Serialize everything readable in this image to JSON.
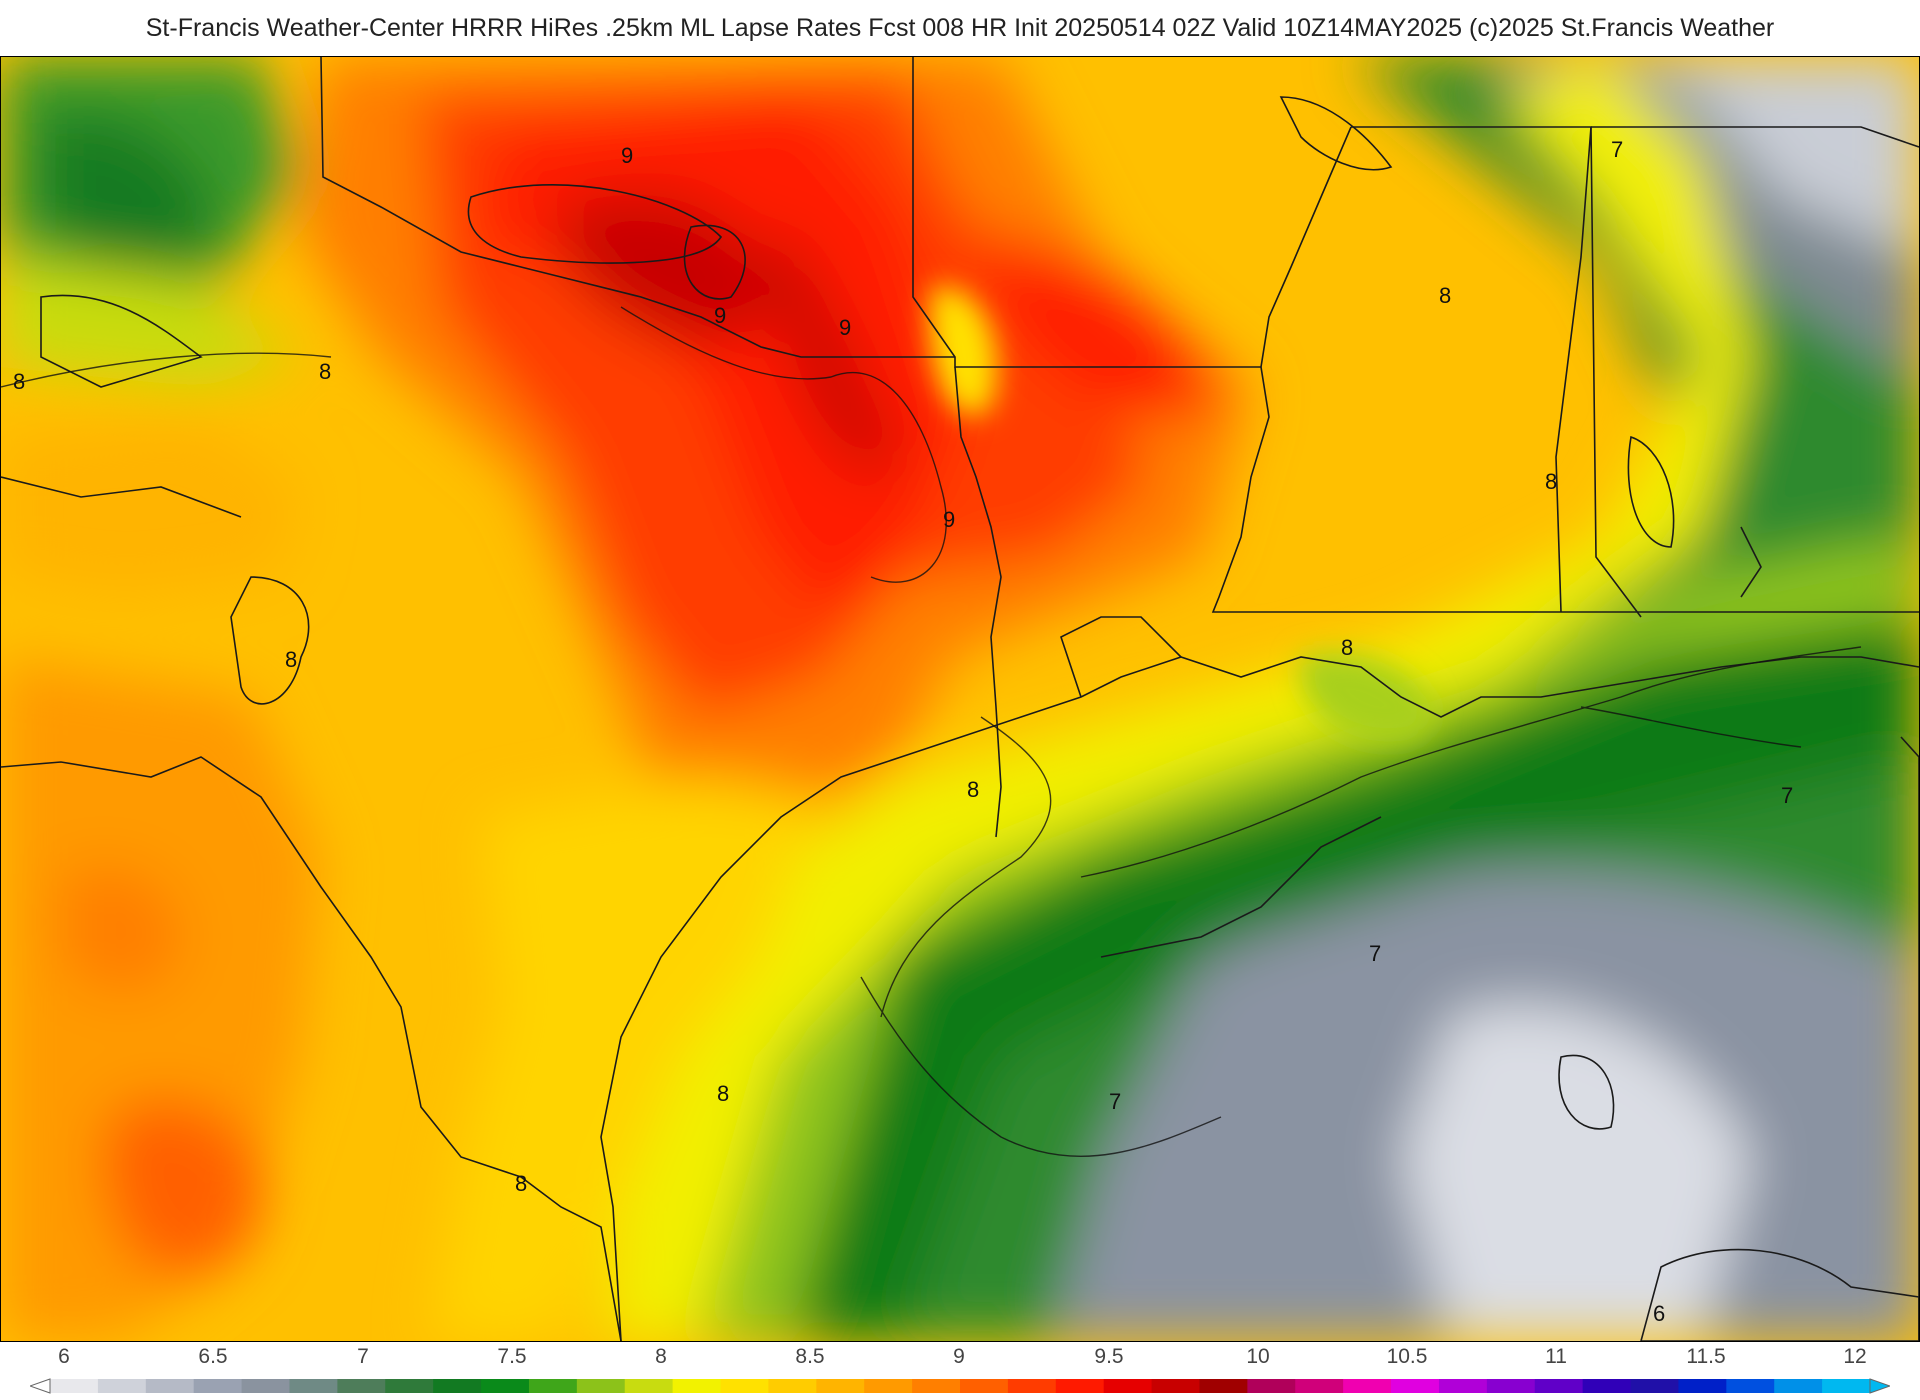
{
  "title": "St-Francis Weather-Center HRRR HiRes .25km ML Lapse Rates  Fcst 008 HR Init 20250514 02Z  Valid 10Z14MAY2025    (c)2025 St.Francis Weather",
  "map": {
    "contour_labels": [
      "9",
      "9",
      "9",
      "9",
      "8",
      "8",
      "8",
      "8",
      "8",
      "8",
      "8",
      "8",
      "8",
      "7",
      "7",
      "7",
      "7",
      "6"
    ]
  },
  "colorbar": {
    "tick_labels": [
      "6",
      "6.5",
      "7",
      "7.5",
      "8",
      "8.5",
      "9",
      "9.5",
      "10",
      "10.5",
      "11",
      "11.5",
      "12"
    ],
    "colors": [
      "#e8e8ec",
      "#cfd2da",
      "#b5bac6",
      "#9aa2b2",
      "#8a939f",
      "#6f8a85",
      "#4e7d5a",
      "#2f7a3a",
      "#127a22",
      "#0a8a1a",
      "#3fa61a",
      "#8cc21a",
      "#c8dc10",
      "#f2f200",
      "#ffe100",
      "#ffcc00",
      "#ffb400",
      "#ff9a00",
      "#ff7f00",
      "#ff6000",
      "#ff3c00",
      "#ff1a00",
      "#e60000",
      "#c80000",
      "#a00000",
      "#b0005a",
      "#d0007a",
      "#f000b0",
      "#e000e0",
      "#b000d8",
      "#8800d0",
      "#6000c8",
      "#3000b8",
      "#2010a8",
      "#0020c8",
      "#0050e0",
      "#0090e8",
      "#00b8f0"
    ]
  }
}
